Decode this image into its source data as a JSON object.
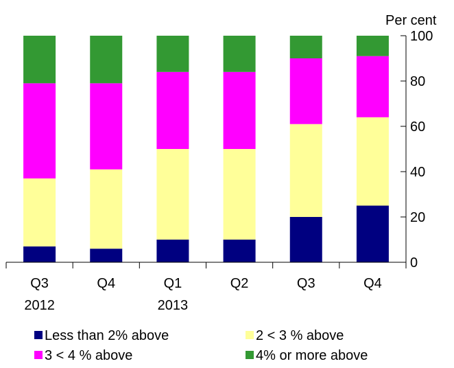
{
  "chart_data": {
    "type": "bar",
    "stacked": true,
    "y_unit_label": "Per cent",
    "y_axis_side": "right",
    "ylim": [
      0,
      100
    ],
    "yticks": [
      0,
      20,
      40,
      60,
      80,
      100
    ],
    "categories": [
      {
        "line1": "Q3",
        "line2": "2012"
      },
      {
        "line1": "Q4",
        "line2": ""
      },
      {
        "line1": "Q1",
        "line2": "2013"
      },
      {
        "line1": "Q2",
        "line2": ""
      },
      {
        "line1": "Q3",
        "line2": ""
      },
      {
        "line1": "Q4",
        "line2": ""
      }
    ],
    "series": [
      {
        "name": "Less than 2% above",
        "color": "#000080",
        "values": [
          7,
          6,
          10,
          10,
          20,
          25
        ]
      },
      {
        "name": "2 < 3 % above",
        "color": "#FFFF99",
        "values": [
          30,
          35,
          40,
          40,
          41,
          39
        ]
      },
      {
        "name": "3 < 4 % above",
        "color": "#FF00FF",
        "values": [
          42,
          38,
          34,
          34,
          29,
          27
        ]
      },
      {
        "name": "4% or more above",
        "color": "#339933",
        "values": [
          21,
          21,
          16,
          16,
          10,
          9
        ]
      }
    ],
    "legend_position": "bottom",
    "grid": false
  }
}
